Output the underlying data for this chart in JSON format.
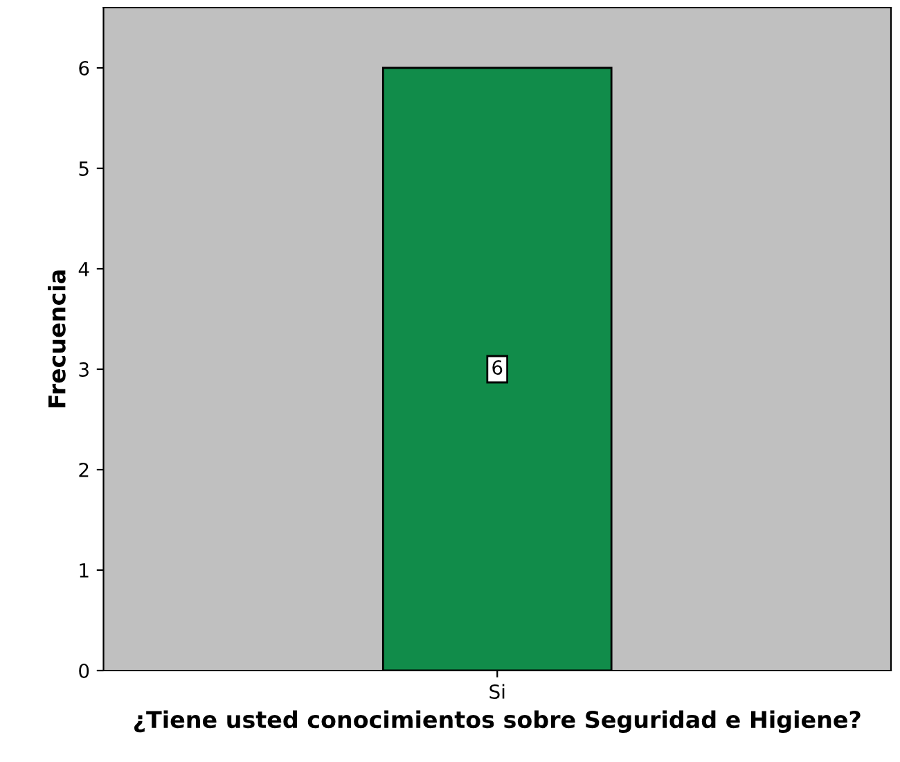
{
  "chart_data": {
    "type": "bar",
    "xlabel": "¿Tiene usted conocimientos sobre Seguridad e Higiene?",
    "ylabel": "Frecuencia",
    "categories": [
      "Si"
    ],
    "values": [
      6
    ],
    "color": "#118c4a",
    "ylim": [
      0,
      6.6
    ],
    "yticks": [
      0,
      1,
      2,
      3,
      4,
      5,
      6
    ],
    "data_labels": true,
    "grid": false,
    "legend": false
  }
}
